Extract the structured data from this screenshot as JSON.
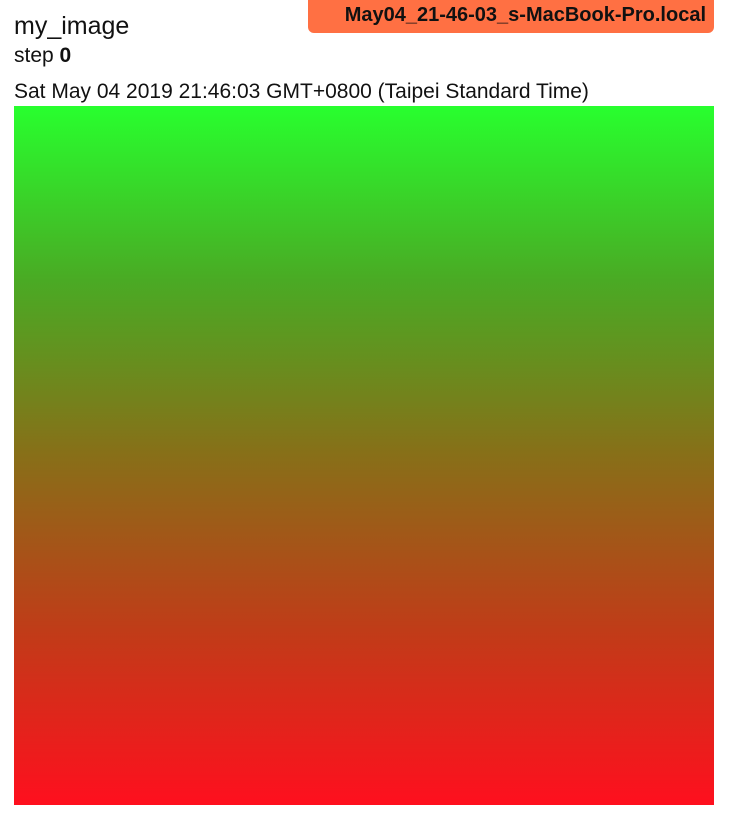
{
  "card": {
    "tag": "my_image",
    "step_label": "step",
    "step_value": "0",
    "wall_time": "Sat May 04 2019 21:46:03 GMT+0800 (Taipei Standard Time)",
    "run_name": "May04_21-46-03_s-MacBook-Pro.local",
    "run_color": "#ff7043"
  },
  "image": {
    "description_colors": {
      "top": "#28ff2e",
      "upper_middle": "#4aaa24",
      "middle": "#886f18",
      "lower_middle": "#c03c18",
      "bottom": "#ff0f1e"
    }
  }
}
